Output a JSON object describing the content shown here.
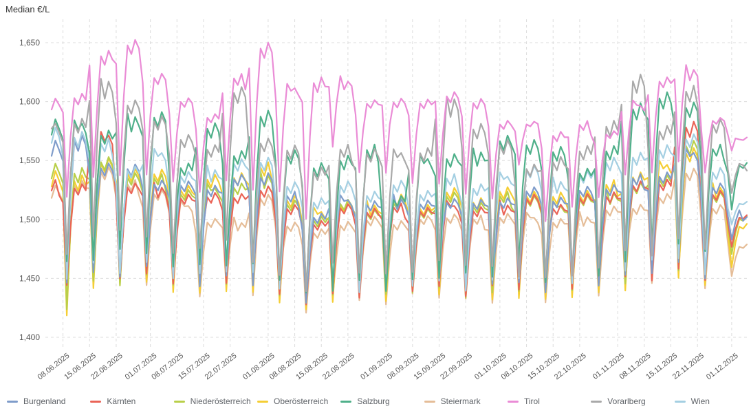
{
  "chart_data": {
    "type": "line",
    "title": "Median €/L",
    "x_axis": {
      "tick_labels": [
        "08.06.2025",
        "15.06.2025",
        "22.06.2025",
        "01.07.2025",
        "08.07.2025",
        "15.07.2025",
        "22.07.2025",
        "01.08.2025",
        "08.08.2025",
        "15.08.2025",
        "22.08.2025",
        "01.09.2025",
        "08.09.2025",
        "15.09.2025",
        "22.09.2025",
        "01.10.2025",
        "08.10.2025",
        "15.10.2025",
        "22.10.2025",
        "01.11.2025",
        "08.11.2025",
        "15.11.2025",
        "22.11.2025",
        "01.12.2025"
      ],
      "tick_day_offsets": [
        3,
        10,
        17,
        26,
        33,
        40,
        47,
        57,
        64,
        71,
        78,
        88,
        95,
        102,
        109,
        118,
        125,
        132,
        139,
        149,
        156,
        163,
        170,
        179
      ],
      "total_days": 184,
      "start_weekday": 4
    },
    "y_axis": {
      "ticks": [
        {
          "value": 1650,
          "label": "1,650"
        },
        {
          "value": 1600,
          "label": "1,600"
        },
        {
          "value": 1550,
          "label": "1,550"
        },
        {
          "value": 1500,
          "label": "1,500"
        },
        {
          "value": 1450,
          "label": "1,450"
        },
        {
          "value": 1400,
          "label": "1,400"
        }
      ],
      "min": 1392,
      "max": 1668
    },
    "weekday_profile": [
      0.85,
      0.02,
      0.6,
      0.97,
      0.9,
      1.0,
      0.93
    ],
    "draw_order": [
      5,
      3,
      2,
      1,
      0,
      8,
      4,
      7,
      6
    ],
    "grid_color": "#dcdcdc",
    "axis_text_color": "#555555",
    "series": [
      {
        "name": "Burgenland",
        "color": "#7f9cca",
        "weekly_high": [
          1570,
          1550,
          1545,
          1535,
          1530,
          1530,
          1535,
          1540,
          1520,
          1505,
          1520,
          1515,
          1520,
          1515,
          1520,
          1515,
          1520,
          1525,
          1520,
          1525,
          1530,
          1535,
          1540,
          1560,
          1530,
          1505
        ],
        "weekly_low": [
          1445,
          1450,
          1450,
          1455,
          1450,
          1445,
          1450,
          1445,
          1440,
          1430,
          1440,
          1440,
          1440,
          1445,
          1445,
          1440,
          1440,
          1445,
          1440,
          1445,
          1445,
          1450,
          1455,
          1460,
          1450,
          1480
        ]
      },
      {
        "name": "Kärnten",
        "color": "#ea6457",
        "weekly_high": [
          1530,
          1575,
          1530,
          1530,
          1520,
          1525,
          1520,
          1530,
          1510,
          1500,
          1510,
          1510,
          1510,
          1510,
          1515,
          1510,
          1515,
          1520,
          1515,
          1520,
          1525,
          1530,
          1535,
          1580,
          1525,
          1500
        ],
        "weekly_low": [
          1445,
          1455,
          1450,
          1450,
          1445,
          1445,
          1445,
          1445,
          1435,
          1430,
          1435,
          1435,
          1440,
          1440,
          1440,
          1435,
          1440,
          1440,
          1440,
          1440,
          1440,
          1450,
          1450,
          1455,
          1450,
          1475
        ]
      },
      {
        "name": "Niederösterreich",
        "color": "#b9cf4a",
        "weekly_high": [
          1545,
          1550,
          1540,
          1535,
          1525,
          1530,
          1530,
          1540,
          1515,
          1505,
          1515,
          1510,
          1515,
          1510,
          1520,
          1515,
          1520,
          1520,
          1515,
          1520,
          1525,
          1530,
          1540,
          1565,
          1525,
          1500
        ],
        "weekly_low": [
          1425,
          1445,
          1445,
          1450,
          1445,
          1440,
          1445,
          1440,
          1435,
          1425,
          1435,
          1435,
          1435,
          1440,
          1440,
          1435,
          1435,
          1440,
          1435,
          1440,
          1440,
          1445,
          1450,
          1455,
          1445,
          1470
        ]
      },
      {
        "name": "Oberösterreich",
        "color": "#f5ce34",
        "weekly_high": [
          1540,
          1550,
          1545,
          1540,
          1530,
          1535,
          1540,
          1545,
          1520,
          1510,
          1515,
          1515,
          1520,
          1515,
          1525,
          1520,
          1525,
          1525,
          1520,
          1525,
          1530,
          1540,
          1550,
          1560,
          1530,
          1495
        ],
        "weekly_low": [
          1413,
          1440,
          1440,
          1445,
          1440,
          1435,
          1440,
          1435,
          1430,
          1420,
          1430,
          1430,
          1430,
          1435,
          1435,
          1430,
          1430,
          1435,
          1430,
          1435,
          1435,
          1440,
          1445,
          1450,
          1440,
          1460
        ]
      },
      {
        "name": "Salzburg",
        "color": "#4fb08a",
        "weekly_high": [
          1585,
          1575,
          1590,
          1590,
          1550,
          1580,
          1560,
          1590,
          1560,
          1545,
          1555,
          1560,
          1520,
          1555,
          1555,
          1560,
          1570,
          1570,
          1560,
          1545,
          1560,
          1600,
          1605,
          1600,
          1560,
          1548
        ],
        "weekly_low": [
          1460,
          1465,
          1470,
          1470,
          1455,
          1460,
          1455,
          1460,
          1450,
          1435,
          1440,
          1445,
          1440,
          1445,
          1450,
          1450,
          1450,
          1455,
          1445,
          1450,
          1450,
          1465,
          1470,
          1480,
          1470,
          1510
        ]
      },
      {
        "name": "Steiermark",
        "color": "#e5bd98",
        "weekly_high": [
          1530,
          1545,
          1530,
          1525,
          1515,
          1500,
          1500,
          1520,
          1500,
          1490,
          1500,
          1500,
          1500,
          1500,
          1505,
          1500,
          1505,
          1505,
          1500,
          1505,
          1510,
          1515,
          1520,
          1545,
          1510,
          1480
        ],
        "weekly_low": [
          1430,
          1445,
          1445,
          1445,
          1440,
          1435,
          1440,
          1435,
          1430,
          1420,
          1430,
          1430,
          1430,
          1435,
          1435,
          1430,
          1430,
          1435,
          1430,
          1435,
          1435,
          1440,
          1445,
          1450,
          1440,
          1455
        ]
      },
      {
        "name": "Tirol",
        "color": "#ea8cd6",
        "weekly_high": [
          1605,
          1645,
          1650,
          1625,
          1600,
          1590,
          1620,
          1650,
          1615,
          1620,
          1620,
          1600,
          1605,
          1600,
          1610,
          1600,
          1585,
          1580,
          1575,
          1580,
          1575,
          1600,
          1620,
          1630,
          1585,
          1572
        ],
        "weekly_low": [
          1518,
          1530,
          1535,
          1540,
          1530,
          1525,
          1530,
          1525,
          1520,
          1500,
          1558,
          1540,
          1535,
          1530,
          1525,
          1520,
          1520,
          1545,
          1500,
          1508,
          1520,
          1535,
          1540,
          1545,
          1540,
          1555
        ]
      },
      {
        "name": "Vorarlberg",
        "color": "#a9a9a9",
        "weekly_high": [
          1585,
          1620,
          1600,
          1590,
          1570,
          1565,
          1610,
          1570,
          1560,
          1545,
          1560,
          1560,
          1560,
          1560,
          1605,
          1580,
          1570,
          1545,
          1555,
          1560,
          1585,
          1620,
          1580,
          1610,
          1585,
          1545
        ],
        "weekly_low": [
          1470,
          1480,
          1490,
          1480,
          1470,
          1470,
          1480,
          1465,
          1450,
          1440,
          1460,
          1455,
          1450,
          1455,
          1460,
          1460,
          1455,
          1450,
          1445,
          1450,
          1460,
          1470,
          1470,
          1480,
          1475,
          1520
        ]
      },
      {
        "name": "Wien",
        "color": "#a4cfe2",
        "weekly_high": [
          1575,
          1565,
          1545,
          1560,
          1540,
          1545,
          1550,
          1555,
          1530,
          1520,
          1530,
          1525,
          1530,
          1525,
          1535,
          1530,
          1540,
          1545,
          1535,
          1540,
          1555,
          1555,
          1565,
          1570,
          1545,
          1512
        ],
        "weekly_low": [
          1450,
          1460,
          1455,
          1460,
          1450,
          1450,
          1455,
          1450,
          1440,
          1435,
          1440,
          1440,
          1440,
          1445,
          1445,
          1440,
          1445,
          1450,
          1445,
          1445,
          1450,
          1455,
          1460,
          1465,
          1455,
          1495
        ]
      }
    ]
  }
}
